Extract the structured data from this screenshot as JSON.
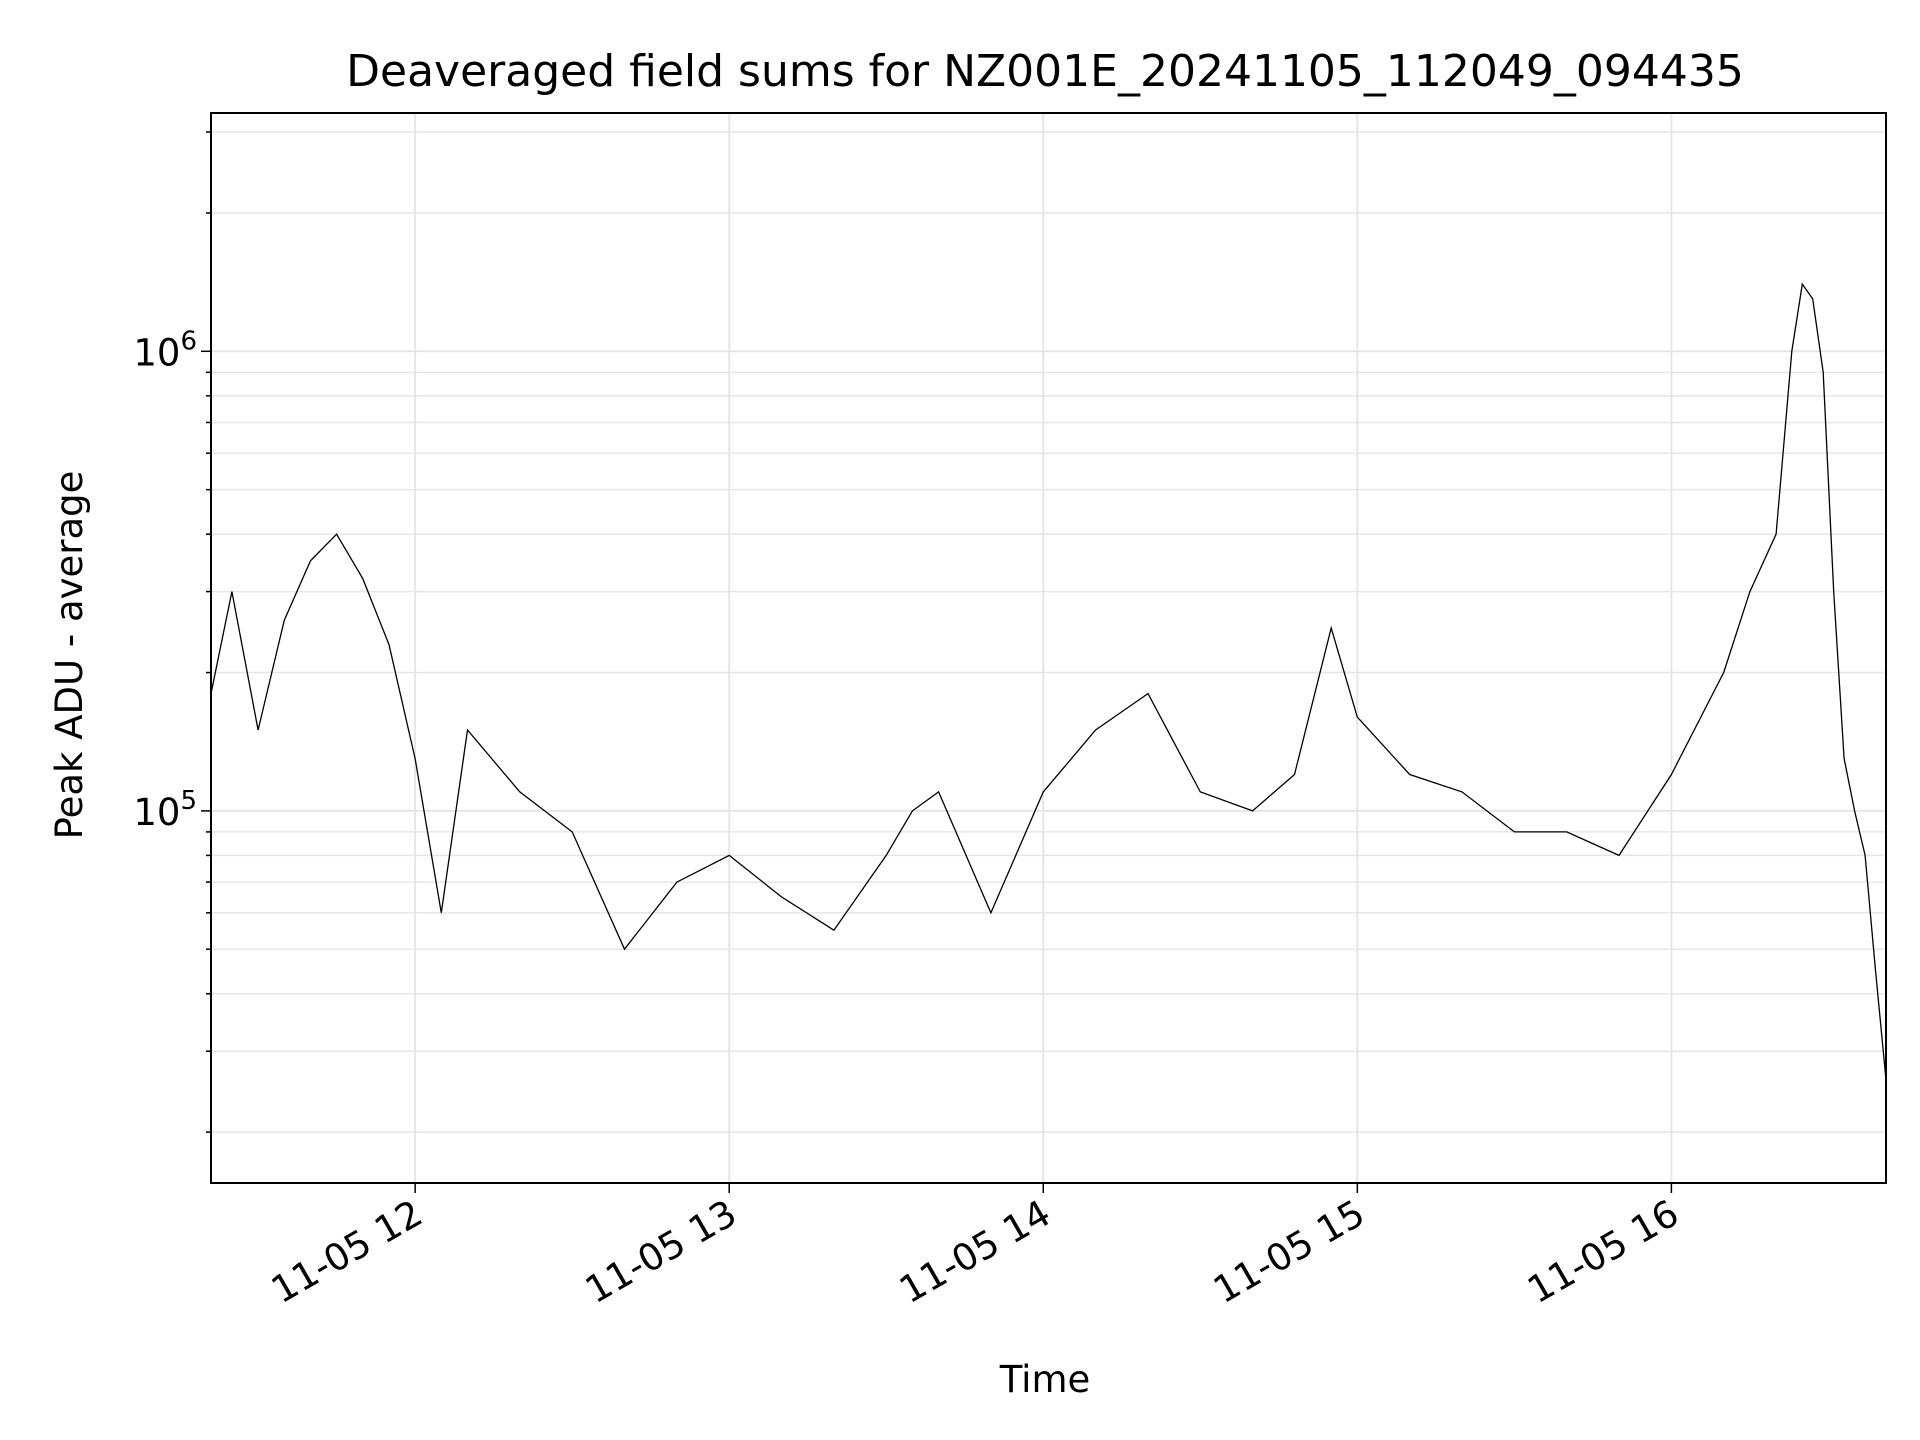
{
  "chart_data": {
    "type": "line",
    "title": "Deaveraged field sums for NZ001E_20241105_112049_094435",
    "xlabel": "Time",
    "ylabel": "Peak ADU - average",
    "yscale": "log",
    "grid": true,
    "grid_minor_y": true,
    "line_color": "#000000",
    "grid_color": "#e6e6e6",
    "xlim": [
      "2024-11-05 11:21",
      "2024-11-05 16:41"
    ],
    "ylim": [
      15500,
      3300000
    ],
    "x_ticks": [
      {
        "value": "2024-11-05 12:00",
        "label": "11-05 12"
      },
      {
        "value": "2024-11-05 13:00",
        "label": "11-05 13"
      },
      {
        "value": "2024-11-05 14:00",
        "label": "11-05 14"
      },
      {
        "value": "2024-11-05 15:00",
        "label": "11-05 15"
      },
      {
        "value": "2024-11-05 16:00",
        "label": "11-05 16"
      }
    ],
    "y_ticks": [
      {
        "value": 100000,
        "base": "10",
        "exp": "5"
      },
      {
        "value": 1000000,
        "base": "10",
        "exp": "6"
      }
    ],
    "series": [
      {
        "x": [
          "2024-11-05 11:21",
          "2024-11-05 11:25",
          "2024-11-05 11:30",
          "2024-11-05 11:35",
          "2024-11-05 11:40",
          "2024-11-05 11:45",
          "2024-11-05 11:50",
          "2024-11-05 11:55",
          "2024-11-05 12:00",
          "2024-11-05 12:05",
          "2024-11-05 12:10",
          "2024-11-05 12:20",
          "2024-11-05 12:30",
          "2024-11-05 12:40",
          "2024-11-05 12:50",
          "2024-11-05 13:00",
          "2024-11-05 13:10",
          "2024-11-05 13:20",
          "2024-11-05 13:30",
          "2024-11-05 13:35",
          "2024-11-05 13:40",
          "2024-11-05 13:50",
          "2024-11-05 14:00",
          "2024-11-05 14:10",
          "2024-11-05 14:20",
          "2024-11-05 14:30",
          "2024-11-05 14:40",
          "2024-11-05 14:48",
          "2024-11-05 14:55",
          "2024-11-05 15:00",
          "2024-11-05 15:10",
          "2024-11-05 15:20",
          "2024-11-05 15:30",
          "2024-11-05 15:40",
          "2024-11-05 15:50",
          "2024-11-05 16:00",
          "2024-11-05 16:10",
          "2024-11-05 16:15",
          "2024-11-05 16:20",
          "2024-11-05 16:23",
          "2024-11-05 16:25",
          "2024-11-05 16:27",
          "2024-11-05 16:29",
          "2024-11-05 16:31",
          "2024-11-05 16:33",
          "2024-11-05 16:35",
          "2024-11-05 16:37",
          "2024-11-05 16:39",
          "2024-11-05 16:41"
        ],
        "values": [
          180000,
          300000,
          150000,
          260000,
          350000,
          400000,
          320000,
          230000,
          130000,
          60000,
          150000,
          110000,
          90000,
          50000,
          70000,
          80000,
          65000,
          55000,
          80000,
          100000,
          110000,
          60000,
          110000,
          150000,
          180000,
          110000,
          100000,
          120000,
          250000,
          160000,
          120000,
          110000,
          90000,
          90000,
          80000,
          120000,
          200000,
          300000,
          400000,
          1000000,
          1400000,
          1300000,
          900000,
          300000,
          130000,
          100000,
          80000,
          45000,
          26000
        ]
      }
    ]
  }
}
